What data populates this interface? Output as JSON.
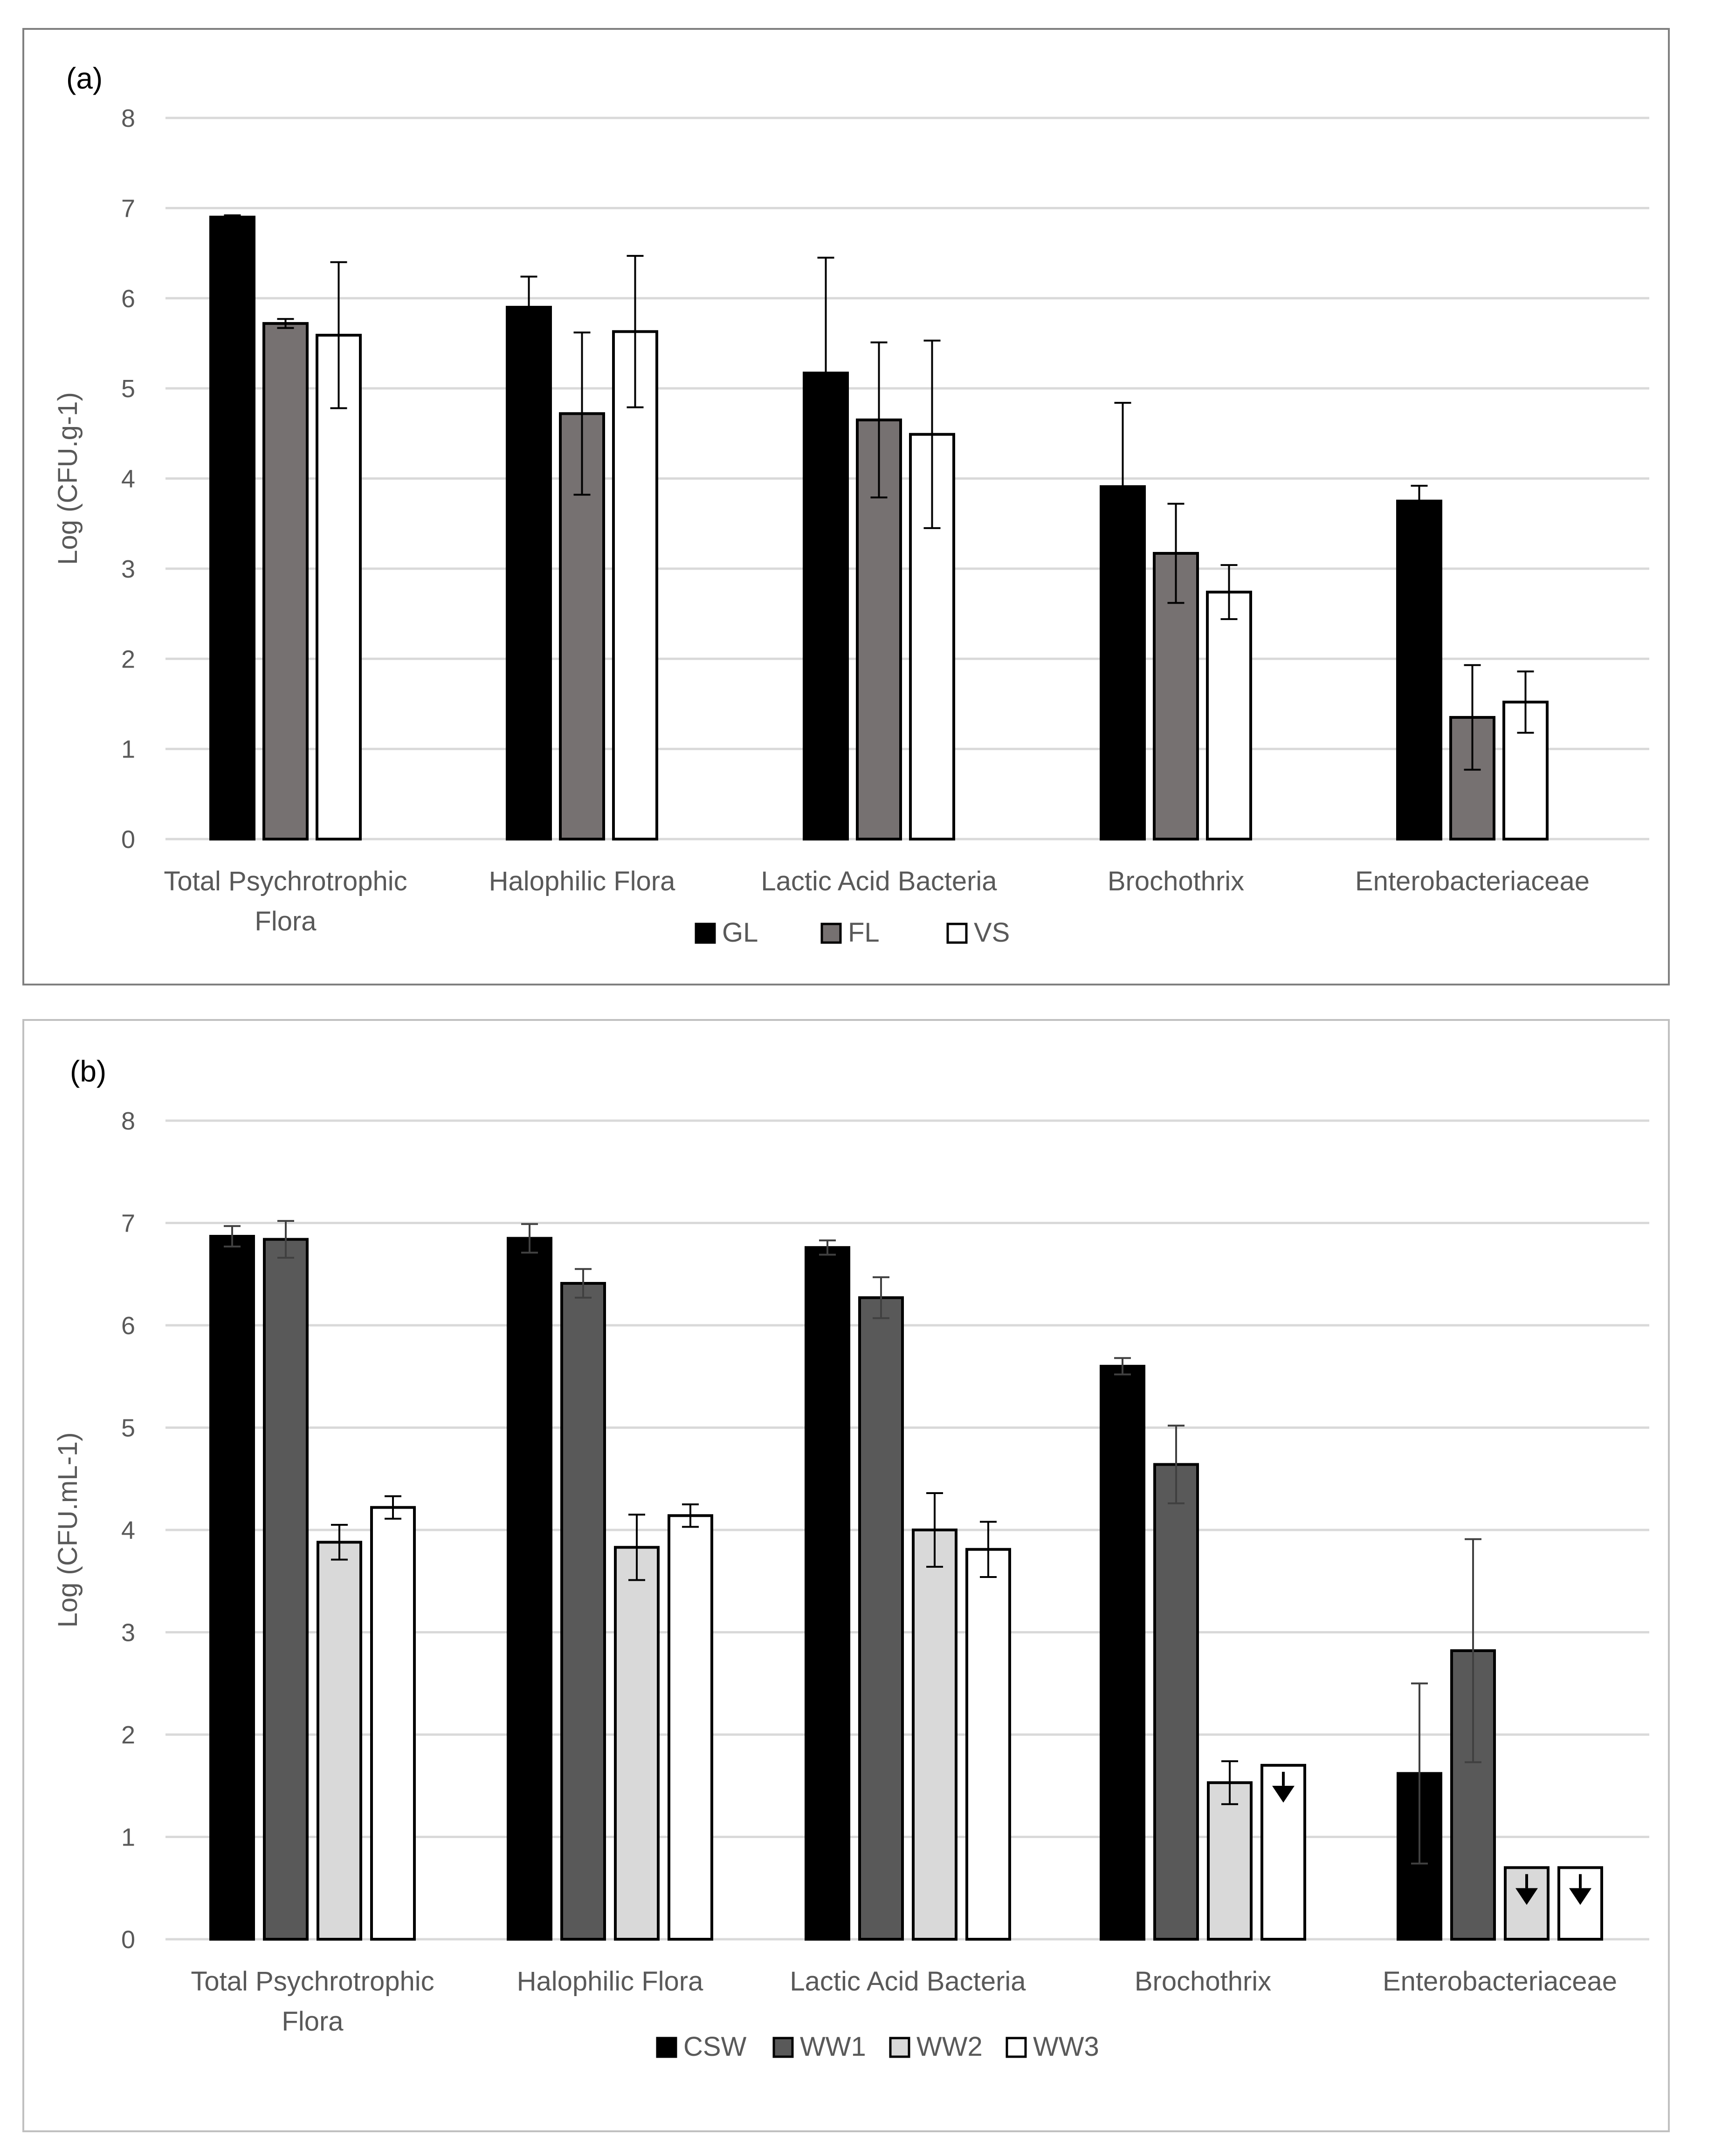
{
  "chart_data": [
    {
      "panel_label": "(a)",
      "type": "bar",
      "ylabel": "Log (CFU.g-1)",
      "ylim": [
        0,
        8
      ],
      "yticks": [
        0,
        1,
        2,
        3,
        4,
        5,
        6,
        7,
        8
      ],
      "grid": true,
      "legend_position": "bottom",
      "categories": [
        [
          "Total Psychrotrophic",
          "Flora"
        ],
        [
          "Halophilic Flora"
        ],
        [
          "Lactic Acid Bacteria"
        ],
        [
          "Brochothrix"
        ],
        [
          "Enterobacteriaceae"
        ]
      ],
      "series": [
        {
          "name": "GL",
          "color": "#000000",
          "values": [
            6.9,
            5.9,
            5.17,
            3.91,
            3.75
          ],
          "errors": [
            0.02,
            0.34,
            1.28,
            0.93,
            0.17
          ]
        },
        {
          "name": "FL",
          "color": "#767171",
          "values": [
            5.72,
            4.72,
            4.65,
            3.17,
            1.35
          ],
          "errors": [
            0.05,
            0.9,
            0.86,
            0.55,
            0.58
          ]
        },
        {
          "name": "VS",
          "color": "#ffffff",
          "values": [
            5.59,
            5.63,
            4.49,
            2.74,
            1.52
          ],
          "errors": [
            0.81,
            0.84,
            1.04,
            0.3,
            0.34
          ]
        }
      ]
    },
    {
      "panel_label": "(b)",
      "type": "bar",
      "ylabel": "Log (CFU.mL-1)",
      "ylim": [
        0,
        8
      ],
      "yticks": [
        0,
        1,
        2,
        3,
        4,
        5,
        6,
        7,
        8
      ],
      "grid": true,
      "legend_position": "bottom",
      "categories": [
        [
          "Total Psychrotrophic",
          "Flora"
        ],
        [
          "Halophilic Flora"
        ],
        [
          "Lactic Acid Bacteria"
        ],
        [
          "Brochothrix"
        ],
        [
          "Enterobacteriaceae"
        ]
      ],
      "series": [
        {
          "name": "CSW",
          "color": "#000000",
          "values": [
            6.87,
            6.85,
            6.76,
            5.6,
            1.62
          ],
          "errors": [
            0.1,
            0.14,
            0.07,
            0.08,
            0.88
          ]
        },
        {
          "name": "WW1",
          "color": "#595959",
          "values": [
            6.84,
            6.41,
            6.27,
            4.64,
            2.82
          ],
          "errors": [
            0.18,
            0.14,
            0.2,
            0.38,
            1.09
          ]
        },
        {
          "name": "WW2",
          "color": "#d9d9d9",
          "values": [
            3.88,
            3.83,
            4.0,
            1.53,
            0.7
          ],
          "errors": [
            0.17,
            0.32,
            0.36,
            0.21,
            0.0
          ]
        },
        {
          "name": "WW3",
          "color": "#ffffff",
          "values": [
            4.22,
            4.14,
            3.81,
            1.7,
            0.7
          ],
          "errors": [
            0.11,
            0.11,
            0.27,
            0.0,
            0.0
          ]
        }
      ],
      "below_detection_limit": [
        {
          "series": "WW2",
          "category": "Enterobacteriaceae"
        },
        {
          "series": "WW3",
          "category": "Brochothrix"
        },
        {
          "series": "WW3",
          "category": "Enterobacteriaceae"
        }
      ]
    }
  ]
}
